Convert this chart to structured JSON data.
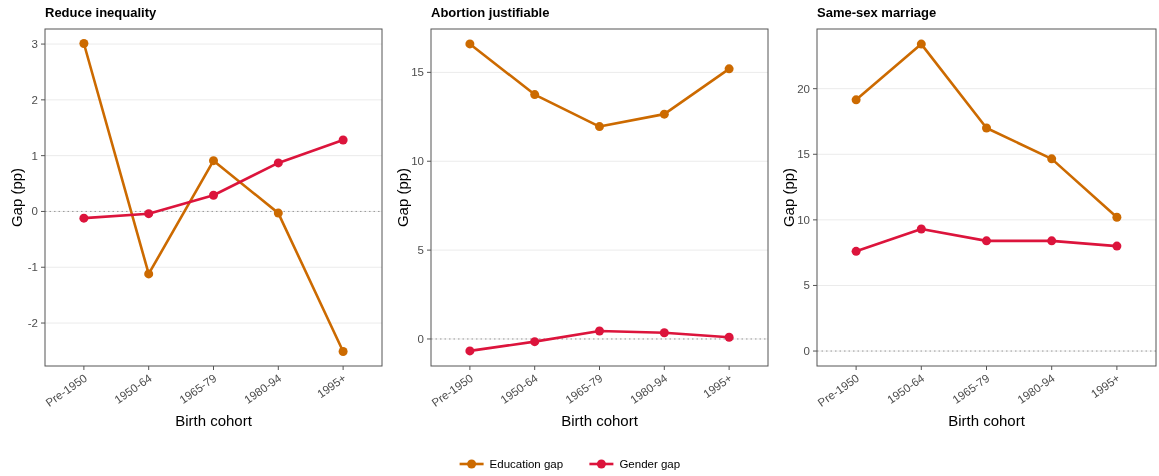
{
  "chart_data": [
    {
      "type": "line",
      "title": "Reduce inequality",
      "xlabel": "Birth cohort",
      "ylabel": "Gap (pp)",
      "categories": [
        "Pre-1950",
        "1950-64",
        "1965-79",
        "1980-94",
        "1995+"
      ],
      "series": [
        {
          "name": "Education gap",
          "color": "#cc6a00",
          "values": [
            3.01,
            -1.12,
            0.91,
            -0.03,
            -2.51
          ]
        },
        {
          "name": "Gender gap",
          "color": "#dc143c",
          "values": [
            -0.12,
            -0.04,
            0.29,
            0.87,
            1.28
          ]
        }
      ],
      "ylim": [
        -2.77,
        3.27
      ],
      "yticks": [
        -2,
        -1,
        0,
        1,
        2,
        3
      ],
      "grid": "y",
      "marker": "circle",
      "legend": "bottom",
      "ref_lines": [
        {
          "axis": "y",
          "value": 0,
          "color": "#999999",
          "line_style": "dotted"
        }
      ]
    },
    {
      "type": "line",
      "title": "Abortion justifiable",
      "xlabel": "Birth cohort",
      "ylabel": "Gap (pp)",
      "categories": [
        "Pre-1950",
        "1950-64",
        "1965-79",
        "1980-94",
        "1995+"
      ],
      "series": [
        {
          "color": "#cc6a00",
          "values": [
            16.6,
            13.75,
            11.95,
            12.65,
            15.2
          ]
        },
        {
          "color": "#dc143c",
          "values": [
            -0.67,
            -0.15,
            0.45,
            0.35,
            0.1
          ]
        }
      ],
      "ylim": [
        -1.52,
        17.44
      ],
      "yticks": [
        0,
        5,
        10,
        15
      ],
      "grid": "y",
      "marker": "circle",
      "ref_lines": [
        {
          "axis": "y",
          "value": 0,
          "color": "#999999",
          "line_style": "dotted"
        }
      ]
    },
    {
      "type": "line",
      "title": "Same-sex marriage",
      "xlabel": "Birth cohort",
      "ylabel": "Gap (pp)",
      "categories": [
        "Pre-1950",
        "1950-64",
        "1965-79",
        "1980-94",
        "1995+"
      ],
      "series": [
        {
          "color": "#cc6a00",
          "values": [
            19.15,
            23.4,
            17.0,
            14.65,
            10.2
          ]
        },
        {
          "color": "#dc143c",
          "values": [
            7.6,
            9.3,
            8.4,
            8.4,
            8.0
          ]
        }
      ],
      "ylim": [
        -1.14,
        24.55
      ],
      "yticks": [
        0,
        5,
        10,
        15,
        20
      ],
      "grid": "y",
      "marker": "circle",
      "ref_lines": [
        {
          "axis": "y",
          "value": 0,
          "color": "#999999",
          "line_style": "dotted"
        }
      ]
    }
  ]
}
